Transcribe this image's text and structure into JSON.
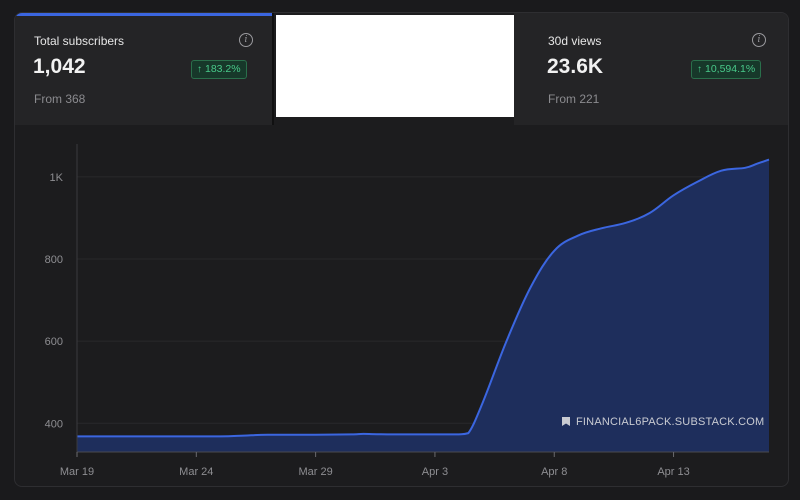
{
  "stats": {
    "subscribers": {
      "label": "Total subscribers",
      "value": "1,042",
      "change": "183.2%",
      "from": "From 368",
      "info_icon": "info-icon"
    },
    "views": {
      "label": "30d views",
      "value": "23.6K",
      "change": "10,594.1%",
      "from": "From 221",
      "info_icon": "info-icon"
    },
    "accent_color": "#3b66e0",
    "positive_color": "#49c98a"
  },
  "watermark": {
    "icon": "bookmark-icon",
    "text": "FINANCIAL6PACK.SUBSTACK.COM"
  },
  "chart_data": {
    "type": "area",
    "xlabel": "",
    "ylabel": "",
    "x_ticks": [
      "Mar 19",
      "Mar 24",
      "Mar 29",
      "Apr 3",
      "Apr 8",
      "Apr 13"
    ],
    "x_tick_day_index": [
      0,
      5,
      10,
      15,
      20,
      25
    ],
    "y_ticks": [
      {
        "value": 400,
        "label": "400"
      },
      {
        "value": 600,
        "label": "600"
      },
      {
        "value": 800,
        "label": "800"
      },
      {
        "value": 1000,
        "label": "1K"
      }
    ],
    "ylim": [
      330,
      1080
    ],
    "xlim": [
      0,
      29
    ],
    "grid": "horizontal",
    "line_color": "#3b66e0",
    "fill_color": "#1e2e5c",
    "series": [
      {
        "points": [
          [
            0,
            368
          ],
          [
            2,
            368
          ],
          [
            4,
            368
          ],
          [
            6,
            368
          ],
          [
            7,
            370
          ],
          [
            8,
            372
          ],
          [
            10,
            372
          ],
          [
            11.5,
            373
          ],
          [
            12,
            374
          ],
          [
            13,
            373
          ],
          [
            15,
            373
          ],
          [
            16,
            373
          ],
          [
            16.4,
            376
          ],
          [
            17,
            450
          ],
          [
            18,
            600
          ],
          [
            19,
            730
          ],
          [
            20,
            820
          ],
          [
            21,
            857
          ],
          [
            22,
            875
          ],
          [
            23,
            888
          ],
          [
            24,
            912
          ],
          [
            25,
            955
          ],
          [
            26,
            988
          ],
          [
            27,
            1015
          ],
          [
            28,
            1022
          ],
          [
            28.5,
            1032
          ],
          [
            29,
            1042
          ]
        ]
      }
    ]
  }
}
